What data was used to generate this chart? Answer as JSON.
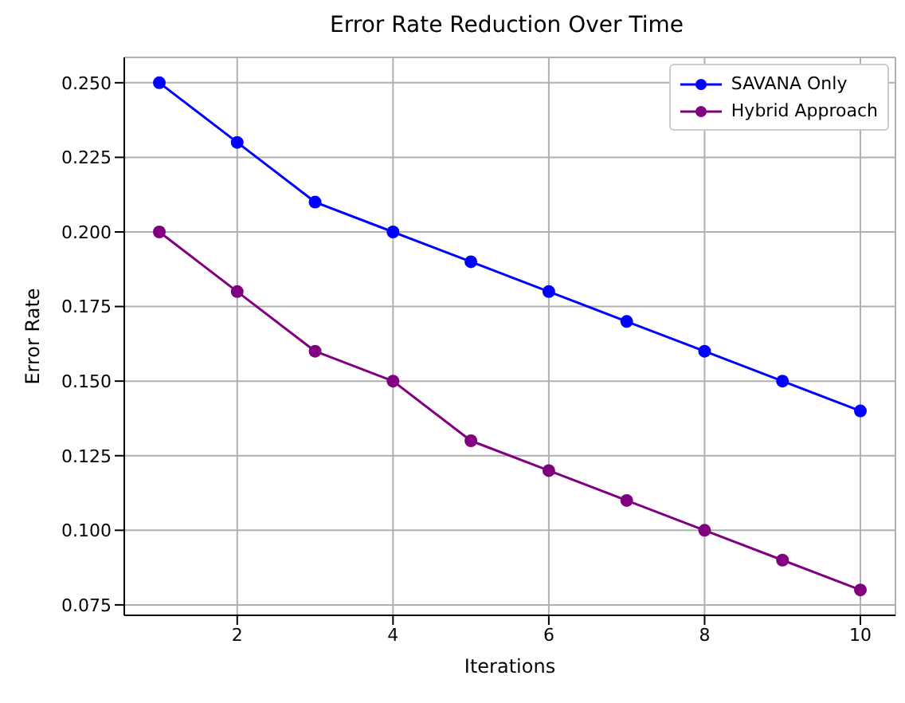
{
  "chart_data": {
    "type": "line",
    "title": "Error Rate Reduction Over Time",
    "xlabel": "Iterations",
    "ylabel": "Error Rate",
    "x": [
      1,
      2,
      3,
      4,
      5,
      6,
      7,
      8,
      9,
      10
    ],
    "series": [
      {
        "name": "SAVANA Only",
        "color": "#0000ff",
        "values": [
          0.25,
          0.23,
          0.21,
          0.2,
          0.19,
          0.18,
          0.17,
          0.16,
          0.15,
          0.14
        ]
      },
      {
        "name": "Hybrid Approach",
        "color": "#800080",
        "values": [
          0.2,
          0.18,
          0.16,
          0.15,
          0.13,
          0.12,
          0.11,
          0.1,
          0.09,
          0.08
        ]
      }
    ],
    "xlim": [
      0.55,
      10.45
    ],
    "xticks": [
      2,
      4,
      6,
      8,
      10
    ],
    "ylim": [
      0.0715,
      0.2585
    ],
    "yticks": [
      {
        "value": 0.075,
        "label": "0.075"
      },
      {
        "value": 0.1,
        "label": "0.100"
      },
      {
        "value": 0.125,
        "label": "0.125"
      },
      {
        "value": 0.15,
        "label": "0.150"
      },
      {
        "value": 0.175,
        "label": "0.175"
      },
      {
        "value": 0.2,
        "label": "0.200"
      },
      {
        "value": 0.225,
        "label": "0.225"
      },
      {
        "value": 0.25,
        "label": "0.250"
      }
    ],
    "grid": true,
    "legend": "top right",
    "marker": "circle",
    "line_style": "solid"
  }
}
